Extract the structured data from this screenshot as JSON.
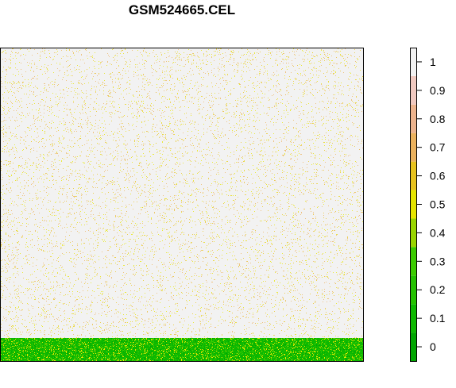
{
  "chart_data": {
    "type": "heatmap",
    "title": "GSM524665.CEL",
    "xlabel": "",
    "ylabel": "",
    "colorbar": {
      "ticks": [
        "0",
        "0.1",
        "0.2",
        "0.3",
        "0.4",
        "0.5",
        "0.6",
        "0.7",
        "0.8",
        "0.9",
        "1"
      ],
      "range": [
        -0.05,
        1.05
      ],
      "colors": [
        "#00A600",
        "#0DB900",
        "#24C200",
        "#3BCC00",
        "#99D600",
        "#E6E600",
        "#E8C31E",
        "#EBB25E",
        "#EDB48E",
        "#F0C9C0",
        "#F2F2F2"
      ]
    },
    "regions": [
      {
        "name": "upper",
        "dominant_value": 1.0,
        "speckle_values": [
          0.5,
          0.6,
          0.7
        ]
      },
      {
        "name": "bottom-band",
        "dominant_value": 0.1,
        "speckle_values": [
          0.0,
          0.2,
          0.3,
          0.5
        ]
      }
    ]
  }
}
